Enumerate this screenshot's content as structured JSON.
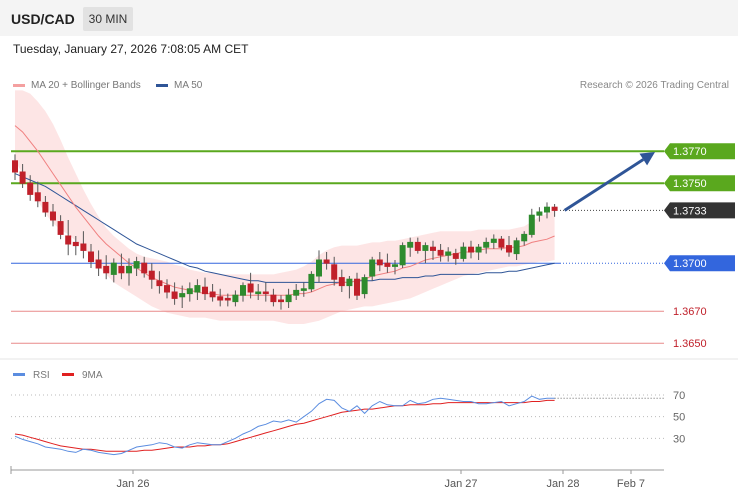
{
  "header": {
    "pair": "USD/CAD",
    "timeframe": "30 MIN"
  },
  "timestamp": "Tuesday, January 27, 2026 7:08:05 AM CET",
  "legend": {
    "bb_label": "MA 20 + Bollinger Bands",
    "ma50_label": "MA 50",
    "copyright": "Research © 2026 Trading Central",
    "rsi_label": "RSI",
    "rsi_ma_label": "9MA"
  },
  "colors": {
    "up": "#2e8b2e",
    "down": "#c0202a",
    "bb_fill": "#fde2e2",
    "ma20": "#f08080",
    "ma50": "#2f5597",
    "resistance": "#5aa81e",
    "support_blue": "#3366dd",
    "support_red": "#e88a8a",
    "arrow": "#2f5597",
    "rsi": "#5b8de0",
    "rsi_ma": "#e02020"
  },
  "chart_data": {
    "type": "candlestick",
    "instrument": "USD/CAD",
    "timeframe": "30 MIN",
    "ylim": [
      1.3642,
      1.3802
    ],
    "x_ticks": [
      "Jan 26",
      "Jan 27",
      "Jan 28",
      "Feb 7"
    ],
    "levels": [
      {
        "value": 1.377,
        "label": "1.3770",
        "kind": "resistance"
      },
      {
        "value": 1.375,
        "label": "1.3750",
        "kind": "resistance"
      },
      {
        "value": 1.3733,
        "label": "1.3733",
        "kind": "last"
      },
      {
        "value": 1.37,
        "label": "1.3700",
        "kind": "pivot"
      },
      {
        "value": 1.367,
        "label": "1.3670",
        "kind": "support"
      },
      {
        "value": 1.365,
        "label": "1.3650",
        "kind": "support"
      }
    ],
    "candles": [
      [
        1.3764,
        1.3768,
        1.3752,
        1.3757
      ],
      [
        1.3757,
        1.3762,
        1.3747,
        1.375
      ],
      [
        1.375,
        1.3755,
        1.3739,
        1.3743
      ],
      [
        1.3744,
        1.3751,
        1.3735,
        1.3739
      ],
      [
        1.3738,
        1.3742,
        1.3729,
        1.3732
      ],
      [
        1.3732,
        1.3737,
        1.3723,
        1.3727
      ],
      [
        1.3726,
        1.373,
        1.3715,
        1.3718
      ],
      [
        1.3717,
        1.3727,
        1.3705,
        1.3712
      ],
      [
        1.3713,
        1.3717,
        1.3705,
        1.3711
      ],
      [
        1.3712,
        1.372,
        1.3703,
        1.3708
      ],
      [
        1.3707,
        1.3712,
        1.3697,
        1.3701
      ],
      [
        1.3702,
        1.3708,
        1.3692,
        1.3697
      ],
      [
        1.3698,
        1.3705,
        1.369,
        1.3694
      ],
      [
        1.3693,
        1.3703,
        1.3688,
        1.37
      ],
      [
        1.3698,
        1.3706,
        1.369,
        1.3694
      ],
      [
        1.3694,
        1.3703,
        1.3686,
        1.3698
      ],
      [
        1.3697,
        1.3704,
        1.3692,
        1.3701
      ],
      [
        1.37,
        1.3704,
        1.3691,
        1.3694
      ],
      [
        1.3695,
        1.37,
        1.3684,
        1.369
      ],
      [
        1.3689,
        1.3695,
        1.3681,
        1.3686
      ],
      [
        1.3686,
        1.369,
        1.3678,
        1.3682
      ],
      [
        1.3682,
        1.3688,
        1.3674,
        1.3678
      ],
      [
        1.3679,
        1.3686,
        1.3672,
        1.3681
      ],
      [
        1.3681,
        1.3688,
        1.3676,
        1.3684
      ],
      [
        1.3682,
        1.369,
        1.3677,
        1.3686
      ],
      [
        1.3685,
        1.3691,
        1.3677,
        1.3681
      ],
      [
        1.3682,
        1.3687,
        1.3676,
        1.3679
      ],
      [
        1.3679,
        1.3684,
        1.3673,
        1.3677
      ],
      [
        1.3678,
        1.3681,
        1.3673,
        1.3677
      ],
      [
        1.3676,
        1.3683,
        1.3673,
        1.368
      ],
      [
        1.368,
        1.3688,
        1.3676,
        1.3686
      ],
      [
        1.3687,
        1.3694,
        1.3678,
        1.3682
      ],
      [
        1.3681,
        1.3687,
        1.3677,
        1.3682
      ],
      [
        1.3682,
        1.3688,
        1.3676,
        1.3681
      ],
      [
        1.368,
        1.3684,
        1.3673,
        1.3676
      ],
      [
        1.3677,
        1.368,
        1.3671,
        1.3676
      ],
      [
        1.3676,
        1.3684,
        1.3672,
        1.368
      ],
      [
        1.368,
        1.3687,
        1.3677,
        1.3683
      ],
      [
        1.3683,
        1.3688,
        1.3679,
        1.3684
      ],
      [
        1.3684,
        1.3695,
        1.3682,
        1.3693
      ],
      [
        1.3692,
        1.3708,
        1.3688,
        1.3702
      ],
      [
        1.3702,
        1.3707,
        1.3696,
        1.37
      ],
      [
        1.3699,
        1.3704,
        1.3686,
        1.369
      ],
      [
        1.3691,
        1.3696,
        1.3682,
        1.3686
      ],
      [
        1.3686,
        1.3692,
        1.3678,
        1.369
      ],
      [
        1.369,
        1.3694,
        1.3677,
        1.368
      ],
      [
        1.3681,
        1.3693,
        1.3678,
        1.3691
      ],
      [
        1.3692,
        1.3704,
        1.3689,
        1.3702
      ],
      [
        1.3702,
        1.3707,
        1.3695,
        1.3699
      ],
      [
        1.37,
        1.3706,
        1.3694,
        1.3698
      ],
      [
        1.3698,
        1.3702,
        1.3693,
        1.3699
      ],
      [
        1.3699,
        1.3713,
        1.3697,
        1.3711
      ],
      [
        1.371,
        1.3716,
        1.3704,
        1.3713
      ],
      [
        1.3713,
        1.3716,
        1.3706,
        1.3708
      ],
      [
        1.3708,
        1.3713,
        1.37,
        1.3711
      ],
      [
        1.371,
        1.3714,
        1.3702,
        1.3708
      ],
      [
        1.3708,
        1.3712,
        1.3701,
        1.3705
      ],
      [
        1.3705,
        1.371,
        1.3701,
        1.3707
      ],
      [
        1.3706,
        1.3709,
        1.3699,
        1.3703
      ],
      [
        1.3703,
        1.3713,
        1.3701,
        1.371
      ],
      [
        1.371,
        1.3714,
        1.3703,
        1.3707
      ],
      [
        1.3707,
        1.3712,
        1.3702,
        1.371
      ],
      [
        1.371,
        1.3716,
        1.3706,
        1.3713
      ],
      [
        1.3713,
        1.3718,
        1.3709,
        1.3715
      ],
      [
        1.3715,
        1.3717,
        1.3708,
        1.371
      ],
      [
        1.3711,
        1.3717,
        1.3704,
        1.3707
      ],
      [
        1.3706,
        1.3716,
        1.3702,
        1.3714
      ],
      [
        1.3714,
        1.372,
        1.3711,
        1.3718
      ],
      [
        1.3718,
        1.3734,
        1.3716,
        1.373
      ],
      [
        1.373,
        1.3735,
        1.3726,
        1.3732
      ],
      [
        1.3732,
        1.3738,
        1.3728,
        1.3735
      ],
      [
        1.3735,
        1.3737,
        1.3729,
        1.3733
      ]
    ],
    "ma20": [
      1.3786,
      1.3782,
      1.3776,
      1.377,
      1.3763,
      1.3756,
      1.3749,
      1.3742,
      1.3735,
      1.3729,
      1.3723,
      1.3717,
      1.3712,
      1.3708,
      1.3704,
      1.37,
      1.3697,
      1.3694,
      1.3691,
      1.3689,
      1.3687,
      1.3685,
      1.3684,
      1.3683,
      1.3682,
      1.3681,
      1.3681,
      1.368,
      1.368,
      1.368,
      1.368,
      1.368,
      1.368,
      1.368,
      1.368,
      1.368,
      1.368,
      1.3681,
      1.3681,
      1.3682,
      1.3684,
      1.3686,
      1.3687,
      1.3688,
      1.3688,
      1.3689,
      1.369,
      1.3692,
      1.3693,
      1.3694,
      1.3695,
      1.3697,
      1.3698,
      1.37,
      1.3702,
      1.3703,
      1.3704,
      1.3705,
      1.3706,
      1.3707,
      1.3707,
      1.3708,
      1.3709,
      1.3709,
      1.3709,
      1.371,
      1.371,
      1.3711,
      1.3713,
      1.3714,
      1.3715,
      1.3717
    ],
    "bb_upper": [
      1.3808,
      1.3808,
      1.3806,
      1.3801,
      1.3795,
      1.3787,
      1.3777,
      1.3766,
      1.3756,
      1.3746,
      1.3737,
      1.3729,
      1.3722,
      1.3717,
      1.3713,
      1.3709,
      1.3706,
      1.3704,
      1.3703,
      1.3702,
      1.3701,
      1.3699,
      1.3698,
      1.3696,
      1.3695,
      1.3694,
      1.3694,
      1.3693,
      1.3693,
      1.3693,
      1.3693,
      1.3693,
      1.3693,
      1.3693,
      1.3693,
      1.3694,
      1.3695,
      1.3696,
      1.3698,
      1.3701,
      1.3705,
      1.3708,
      1.371,
      1.3711,
      1.3711,
      1.3711,
      1.3712,
      1.3713,
      1.3713,
      1.3714,
      1.3714,
      1.3715,
      1.3716,
      1.3717,
      1.3718,
      1.3719,
      1.372,
      1.372,
      1.372,
      1.372,
      1.372,
      1.3721,
      1.3721,
      1.3721,
      1.3721,
      1.3721,
      1.3722,
      1.3723,
      1.3726,
      1.3729,
      1.3731,
      1.3734
    ],
    "bb_lower": [
      1.3764,
      1.3756,
      1.3746,
      1.3739,
      1.3731,
      1.3725,
      1.3721,
      1.3718,
      1.3714,
      1.371,
      1.3704,
      1.3698,
      1.3693,
      1.3688,
      1.3685,
      1.3682,
      1.3679,
      1.3676,
      1.3673,
      1.3671,
      1.3669,
      1.3668,
      1.3667,
      1.3666,
      1.3666,
      1.3666,
      1.3665,
      1.3664,
      1.3664,
      1.3664,
      1.3664,
      1.3664,
      1.3664,
      1.3664,
      1.3664,
      1.3663,
      1.3662,
      1.3662,
      1.3662,
      1.3663,
      1.3664,
      1.3666,
      1.3668,
      1.367,
      1.3671,
      1.3672,
      1.3673,
      1.3673,
      1.3674,
      1.3675,
      1.3676,
      1.3677,
      1.3678,
      1.368,
      1.3682,
      1.3684,
      1.3686,
      1.3688,
      1.369,
      1.3692,
      1.3693,
      1.3694,
      1.3695,
      1.3696,
      1.3697,
      1.3698,
      1.3698,
      1.3699,
      1.37,
      1.3701,
      1.3701,
      1.3702
    ],
    "ma50": [
      1.3756,
      1.3754,
      1.3752,
      1.375,
      1.3748,
      1.3745,
      1.3742,
      1.3739,
      1.3736,
      1.3733,
      1.373,
      1.3727,
      1.3724,
      1.3721,
      1.3718,
      1.3715,
      1.3712,
      1.371,
      1.3708,
      1.3706,
      1.3704,
      1.3702,
      1.37,
      1.3698,
      1.3697,
      1.3695,
      1.3694,
      1.3693,
      1.3692,
      1.3691,
      1.369,
      1.3689,
      1.3689,
      1.3688,
      1.3688,
      1.3688,
      1.3688,
      1.3688,
      1.3688,
      1.3688,
      1.3688,
      1.3688,
      1.3688,
      1.3688,
      1.3688,
      1.3689,
      1.3689,
      1.3689,
      1.369,
      1.369,
      1.369,
      1.3691,
      1.3691,
      1.3691,
      1.3692,
      1.3692,
      1.3693,
      1.3693,
      1.3693,
      1.3693,
      1.3693,
      1.3693,
      1.3694,
      1.3694,
      1.3694,
      1.3695,
      1.3695,
      1.3696,
      1.3697,
      1.3698,
      1.3699,
      1.37
    ],
    "forecast_arrow": {
      "from": 1.3733,
      "to": 1.377
    },
    "rsi": {
      "ticks": [
        70,
        50,
        30
      ],
      "ylim": [
        10,
        82
      ],
      "rsi": [
        32,
        29,
        27,
        25,
        22,
        21,
        20,
        18,
        17,
        20,
        19,
        17,
        16,
        15,
        16,
        19,
        22,
        23,
        24,
        26,
        25,
        22,
        21,
        24,
        26,
        25,
        24,
        24,
        27,
        30,
        34,
        37,
        41,
        43,
        46,
        45,
        47,
        45,
        50,
        55,
        62,
        66,
        65,
        58,
        55,
        60,
        53,
        60,
        64,
        61,
        60,
        60,
        65,
        62,
        63,
        66,
        67,
        66,
        65,
        64,
        64,
        62,
        62,
        63,
        64,
        60,
        62,
        64,
        69,
        66,
        67,
        67
      ],
      "ma9": [
        34,
        33,
        31,
        29,
        27,
        25,
        23,
        22,
        21,
        20,
        20,
        19,
        18,
        18,
        18,
        18,
        18,
        19,
        19,
        20,
        21,
        22,
        22,
        22,
        23,
        23,
        24,
        24,
        25,
        27,
        29,
        31,
        33,
        35,
        37,
        39,
        41,
        43,
        44,
        46,
        48,
        50,
        52,
        54,
        55,
        56,
        57,
        57,
        58,
        59,
        60,
        60,
        61,
        61,
        61,
        62,
        62,
        63,
        63,
        63,
        63,
        63,
        63,
        63,
        63,
        63,
        63,
        63,
        64,
        64,
        65,
        65
      ]
    }
  }
}
